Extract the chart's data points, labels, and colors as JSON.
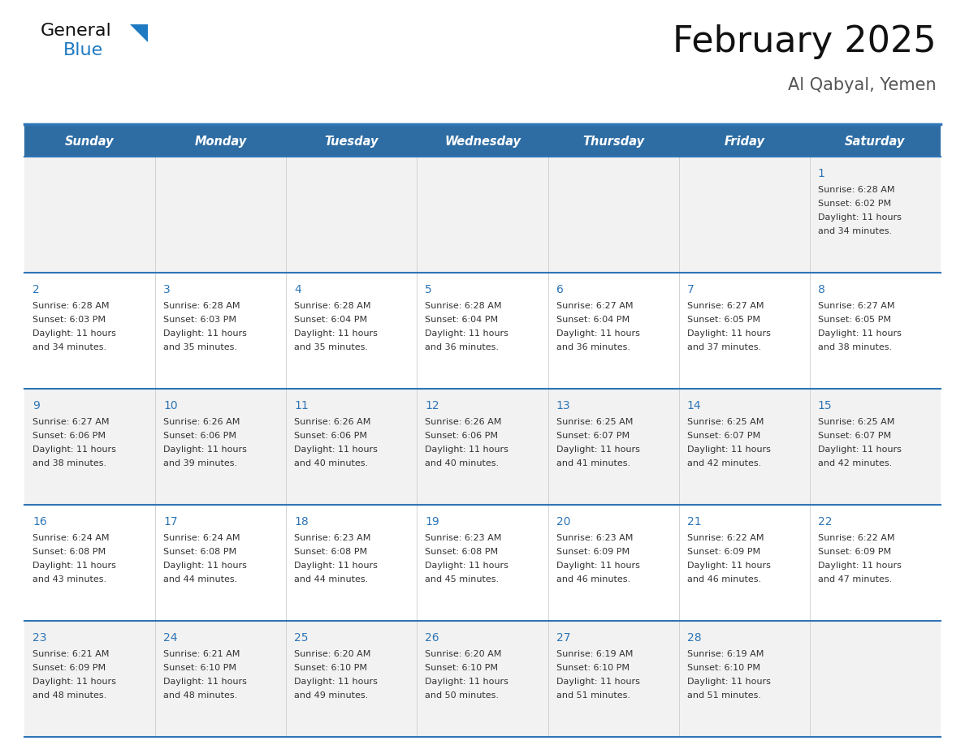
{
  "title": "February 2025",
  "subtitle": "Al Qabyal, Yemen",
  "header_color": "#2E6DA4",
  "header_text_color": "#FFFFFF",
  "days_of_week": [
    "Sunday",
    "Monday",
    "Tuesday",
    "Wednesday",
    "Thursday",
    "Friday",
    "Saturday"
  ],
  "bg_color": "#FFFFFF",
  "cell_bg_row0": "#F2F2F2",
  "cell_bg_row1": "#FFFFFF",
  "cell_bg_row2": "#F2F2F2",
  "cell_bg_row3": "#FFFFFF",
  "cell_bg_row4": "#F2F2F2",
  "line_color": "#2E75B6",
  "day_num_color": "#2E75B6",
  "text_color": "#333333",
  "logo_general_color": "#111111",
  "logo_blue_color": "#1E7AC2",
  "logo_triangle_color": "#1E7AC2",
  "title_color": "#111111",
  "subtitle_color": "#555555",
  "calendar": [
    [
      null,
      null,
      null,
      null,
      null,
      null,
      {
        "day": "1",
        "sunrise": "6:28 AM",
        "sunset": "6:02 PM",
        "daylight1": "11 hours",
        "daylight2": "and 34 minutes."
      }
    ],
    [
      {
        "day": "2",
        "sunrise": "6:28 AM",
        "sunset": "6:03 PM",
        "daylight1": "11 hours",
        "daylight2": "and 34 minutes."
      },
      {
        "day": "3",
        "sunrise": "6:28 AM",
        "sunset": "6:03 PM",
        "daylight1": "11 hours",
        "daylight2": "and 35 minutes."
      },
      {
        "day": "4",
        "sunrise": "6:28 AM",
        "sunset": "6:04 PM",
        "daylight1": "11 hours",
        "daylight2": "and 35 minutes."
      },
      {
        "day": "5",
        "sunrise": "6:28 AM",
        "sunset": "6:04 PM",
        "daylight1": "11 hours",
        "daylight2": "and 36 minutes."
      },
      {
        "day": "6",
        "sunrise": "6:27 AM",
        "sunset": "6:04 PM",
        "daylight1": "11 hours",
        "daylight2": "and 36 minutes."
      },
      {
        "day": "7",
        "sunrise": "6:27 AM",
        "sunset": "6:05 PM",
        "daylight1": "11 hours",
        "daylight2": "and 37 minutes."
      },
      {
        "day": "8",
        "sunrise": "6:27 AM",
        "sunset": "6:05 PM",
        "daylight1": "11 hours",
        "daylight2": "and 38 minutes."
      }
    ],
    [
      {
        "day": "9",
        "sunrise": "6:27 AM",
        "sunset": "6:06 PM",
        "daylight1": "11 hours",
        "daylight2": "and 38 minutes."
      },
      {
        "day": "10",
        "sunrise": "6:26 AM",
        "sunset": "6:06 PM",
        "daylight1": "11 hours",
        "daylight2": "and 39 minutes."
      },
      {
        "day": "11",
        "sunrise": "6:26 AM",
        "sunset": "6:06 PM",
        "daylight1": "11 hours",
        "daylight2": "and 40 minutes."
      },
      {
        "day": "12",
        "sunrise": "6:26 AM",
        "sunset": "6:06 PM",
        "daylight1": "11 hours",
        "daylight2": "and 40 minutes."
      },
      {
        "day": "13",
        "sunrise": "6:25 AM",
        "sunset": "6:07 PM",
        "daylight1": "11 hours",
        "daylight2": "and 41 minutes."
      },
      {
        "day": "14",
        "sunrise": "6:25 AM",
        "sunset": "6:07 PM",
        "daylight1": "11 hours",
        "daylight2": "and 42 minutes."
      },
      {
        "day": "15",
        "sunrise": "6:25 AM",
        "sunset": "6:07 PM",
        "daylight1": "11 hours",
        "daylight2": "and 42 minutes."
      }
    ],
    [
      {
        "day": "16",
        "sunrise": "6:24 AM",
        "sunset": "6:08 PM",
        "daylight1": "11 hours",
        "daylight2": "and 43 minutes."
      },
      {
        "day": "17",
        "sunrise": "6:24 AM",
        "sunset": "6:08 PM",
        "daylight1": "11 hours",
        "daylight2": "and 44 minutes."
      },
      {
        "day": "18",
        "sunrise": "6:23 AM",
        "sunset": "6:08 PM",
        "daylight1": "11 hours",
        "daylight2": "and 44 minutes."
      },
      {
        "day": "19",
        "sunrise": "6:23 AM",
        "sunset": "6:08 PM",
        "daylight1": "11 hours",
        "daylight2": "and 45 minutes."
      },
      {
        "day": "20",
        "sunrise": "6:23 AM",
        "sunset": "6:09 PM",
        "daylight1": "11 hours",
        "daylight2": "and 46 minutes."
      },
      {
        "day": "21",
        "sunrise": "6:22 AM",
        "sunset": "6:09 PM",
        "daylight1": "11 hours",
        "daylight2": "and 46 minutes."
      },
      {
        "day": "22",
        "sunrise": "6:22 AM",
        "sunset": "6:09 PM",
        "daylight1": "11 hours",
        "daylight2": "and 47 minutes."
      }
    ],
    [
      {
        "day": "23",
        "sunrise": "6:21 AM",
        "sunset": "6:09 PM",
        "daylight1": "11 hours",
        "daylight2": "and 48 minutes."
      },
      {
        "day": "24",
        "sunrise": "6:21 AM",
        "sunset": "6:10 PM",
        "daylight1": "11 hours",
        "daylight2": "and 48 minutes."
      },
      {
        "day": "25",
        "sunrise": "6:20 AM",
        "sunset": "6:10 PM",
        "daylight1": "11 hours",
        "daylight2": "and 49 minutes."
      },
      {
        "day": "26",
        "sunrise": "6:20 AM",
        "sunset": "6:10 PM",
        "daylight1": "11 hours",
        "daylight2": "and 50 minutes."
      },
      {
        "day": "27",
        "sunrise": "6:19 AM",
        "sunset": "6:10 PM",
        "daylight1": "11 hours",
        "daylight2": "and 51 minutes."
      },
      {
        "day": "28",
        "sunrise": "6:19 AM",
        "sunset": "6:10 PM",
        "daylight1": "11 hours",
        "daylight2": "and 51 minutes."
      },
      null
    ]
  ]
}
